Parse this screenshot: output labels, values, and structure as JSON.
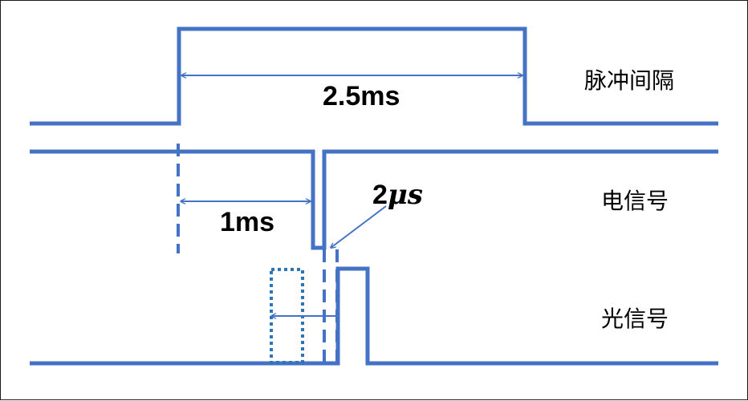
{
  "labels": {
    "pulse_interval": "脉冲间隔",
    "electrical_signal": "电信号",
    "optical_signal": "光信号"
  },
  "dimensions": {
    "period": "2.5ms",
    "delay": "1ms",
    "pulse_width_number": "2",
    "pulse_width_unit": "μs"
  },
  "colors": {
    "signal": "#4472C4",
    "dotted_box": "#2E75B6",
    "text": "#000000"
  }
}
